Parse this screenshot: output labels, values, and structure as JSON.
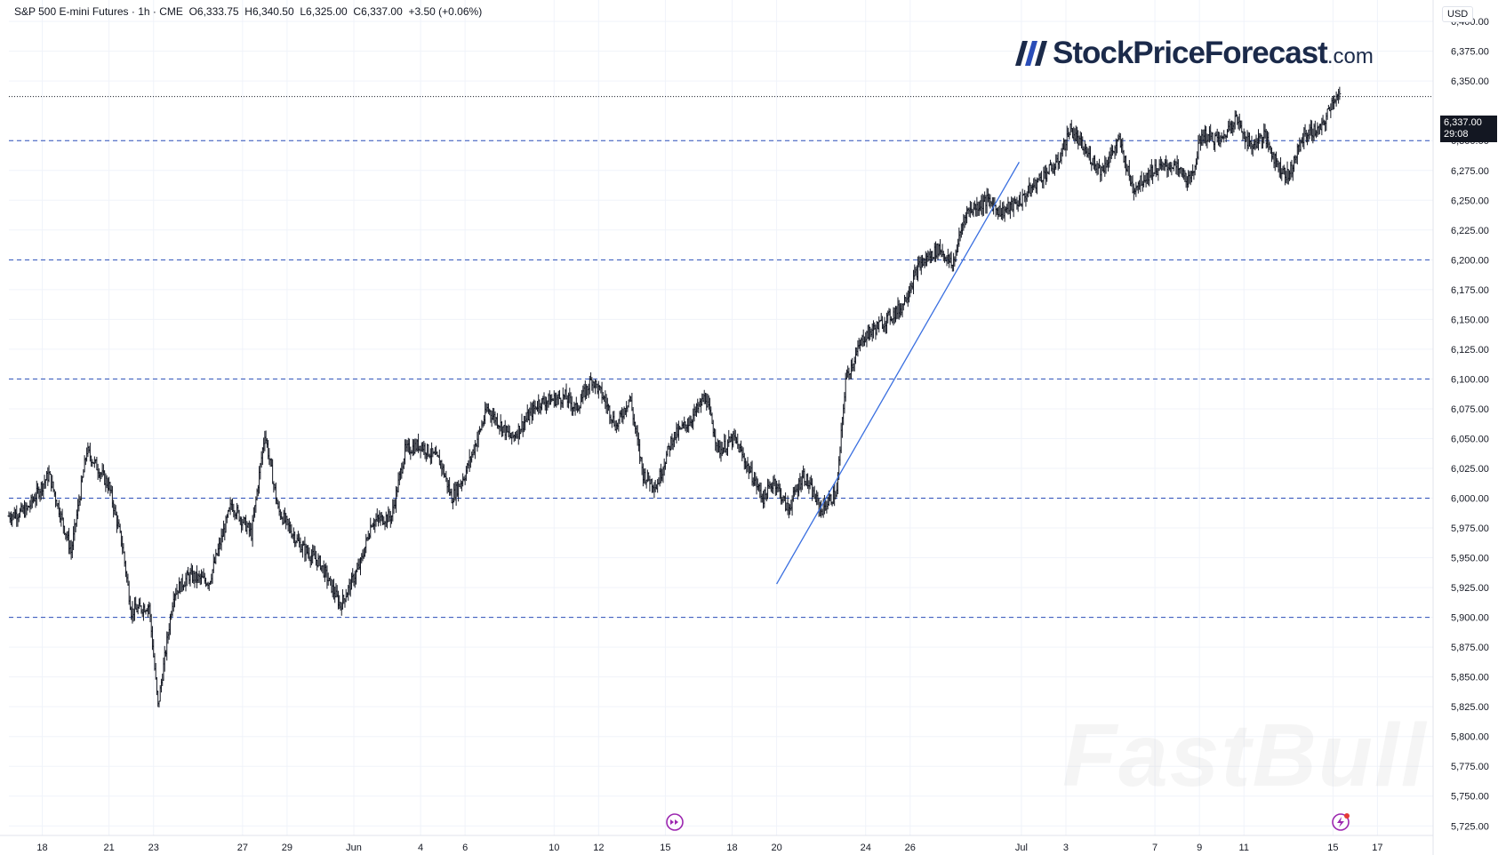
{
  "header": {
    "symbol": "S&P 500 E-mini Futures",
    "interval": "1h",
    "exchange": "CME",
    "open": "O6,333.75",
    "high": "H6,340.50",
    "low": "L6,325.00",
    "close": "C6,337.00",
    "change": "+3.50 (+0.06%)"
  },
  "currency": "USD",
  "logo": {
    "name": "StockPriceForecast",
    "domain": ".com"
  },
  "watermark": "FastBull",
  "price_label": {
    "price": "6,337.00",
    "countdown": "29:08"
  },
  "colors": {
    "candle": "#131722",
    "dashed": "#2a4db8",
    "trend": "#3a6fe0",
    "icon": "#9c27b0",
    "logo": "#1b2a4a"
  },
  "icons": {
    "event_icon": "fast-forward-circle-icon",
    "alert_icon": "lightning-circle-icon"
  },
  "chart_data": {
    "type": "candlestick",
    "title": "S&P 500 E-mini Futures · 1h · CME",
    "ylim": [
      5717,
      6418
    ],
    "yticks": [
      {
        "value": 6400,
        "label": "6,400.00"
      },
      {
        "value": 6375,
        "label": "6,375.00"
      },
      {
        "value": 6350,
        "label": "6,350.00"
      },
      {
        "value": 6300,
        "label": "6,300.00"
      },
      {
        "value": 6275,
        "label": "6,275.00"
      },
      {
        "value": 6250,
        "label": "6,250.00"
      },
      {
        "value": 6225,
        "label": "6,225.00"
      },
      {
        "value": 6200,
        "label": "6,200.00"
      },
      {
        "value": 6175,
        "label": "6,175.00"
      },
      {
        "value": 6150,
        "label": "6,150.00"
      },
      {
        "value": 6125,
        "label": "6,125.00"
      },
      {
        "value": 6100,
        "label": "6,100.00"
      },
      {
        "value": 6075,
        "label": "6,075.00"
      },
      {
        "value": 6050,
        "label": "6,050.00"
      },
      {
        "value": 6025,
        "label": "6,025.00"
      },
      {
        "value": 6000,
        "label": "6,000.00"
      },
      {
        "value": 5975,
        "label": "5,975.00"
      },
      {
        "value": 5950,
        "label": "5,950.00"
      },
      {
        "value": 5925,
        "label": "5,925.00"
      },
      {
        "value": 5900,
        "label": "5,900.00"
      },
      {
        "value": 5875,
        "label": "5,875.00"
      },
      {
        "value": 5850,
        "label": "5,850.00"
      },
      {
        "value": 5825,
        "label": "5,825.00"
      },
      {
        "value": 5800,
        "label": "5,800.00"
      },
      {
        "value": 5775,
        "label": "5,775.00"
      },
      {
        "value": 5750,
        "label": "5,750.00"
      },
      {
        "value": 5725,
        "label": "5,725.00"
      }
    ],
    "xticks": [
      "18",
      "21",
      "23",
      "27",
      "29",
      "Jun",
      "4",
      "6",
      "10",
      "12",
      "15",
      "18",
      "20",
      "24",
      "26",
      "Jul",
      "3",
      "7",
      "9",
      "11",
      "15",
      "17"
    ],
    "xtick_day": [
      0,
      3,
      5,
      9,
      11,
      14,
      17,
      19,
      23,
      25,
      28,
      31,
      33,
      37,
      39,
      44,
      46,
      50,
      52,
      54,
      58,
      60
    ],
    "day_range": [
      -1.5,
      62.5
    ],
    "horizontal_levels": [
      6300,
      6200,
      6100,
      6000,
      5900
    ],
    "last_price": 6337,
    "trendline": {
      "from": {
        "day": 33.0,
        "price": 5928
      },
      "to": {
        "day": 43.9,
        "price": 6282
      }
    },
    "price_path": [
      [
        -1.5,
        5985
      ],
      [
        -0.7,
        5990
      ],
      [
        0.3,
        6020
      ],
      [
        1.3,
        5955
      ],
      [
        2.0,
        6040
      ],
      [
        3.0,
        6010
      ],
      [
        3.6,
        5960
      ],
      [
        4.0,
        5905
      ],
      [
        4.8,
        5910
      ],
      [
        5.2,
        5825
      ],
      [
        5.9,
        5920
      ],
      [
        6.6,
        5935
      ],
      [
        7.5,
        5930
      ],
      [
        8.5,
        5995
      ],
      [
        9.4,
        5970
      ],
      [
        10.0,
        6055
      ],
      [
        10.6,
        5990
      ],
      [
        11.6,
        5960
      ],
      [
        12.5,
        5945
      ],
      [
        13.4,
        5910
      ],
      [
        14.3,
        5945
      ],
      [
        14.8,
        5980
      ],
      [
        15.7,
        5985
      ],
      [
        16.3,
        6040
      ],
      [
        17.0,
        6045
      ],
      [
        17.9,
        6030
      ],
      [
        18.4,
        6000
      ],
      [
        19.0,
        6020
      ],
      [
        20.0,
        6075
      ],
      [
        21.1,
        6050
      ],
      [
        22.3,
        6080
      ],
      [
        23.5,
        6085
      ],
      [
        24.0,
        6075
      ],
      [
        24.7,
        6100
      ],
      [
        25.2,
        6085
      ],
      [
        25.8,
        6060
      ],
      [
        26.4,
        6085
      ],
      [
        27.0,
        6020
      ],
      [
        27.6,
        6010
      ],
      [
        28.3,
        6050
      ],
      [
        29.1,
        6065
      ],
      [
        29.8,
        6085
      ],
      [
        30.4,
        6040
      ],
      [
        31.1,
        6050
      ],
      [
        31.6,
        6030
      ],
      [
        32.4,
        6000
      ],
      [
        32.9,
        6015
      ],
      [
        33.5,
        5990
      ],
      [
        34.2,
        6020
      ],
      [
        35.0,
        5990
      ],
      [
        35.7,
        6005
      ],
      [
        36.1,
        6100
      ],
      [
        36.9,
        6135
      ],
      [
        37.6,
        6145
      ],
      [
        38.6,
        6160
      ],
      [
        39.4,
        6195
      ],
      [
        40.3,
        6210
      ],
      [
        40.9,
        6195
      ],
      [
        41.5,
        6240
      ],
      [
        42.5,
        6250
      ],
      [
        43.1,
        6240
      ],
      [
        44.0,
        6250
      ],
      [
        44.9,
        6270
      ],
      [
        45.6,
        6280
      ],
      [
        46.2,
        6310
      ],
      [
        46.9,
        6290
      ],
      [
        47.6,
        6275
      ],
      [
        48.4,
        6300
      ],
      [
        49.0,
        6260
      ],
      [
        49.9,
        6275
      ],
      [
        50.8,
        6280
      ],
      [
        51.6,
        6265
      ],
      [
        52.1,
        6305
      ],
      [
        53.0,
        6300
      ],
      [
        53.6,
        6320
      ],
      [
        54.3,
        6295
      ],
      [
        54.9,
        6305
      ],
      [
        55.5,
        6280
      ],
      [
        56.0,
        6270
      ],
      [
        56.7,
        6305
      ],
      [
        57.5,
        6310
      ],
      [
        58.0,
        6335
      ],
      [
        58.3,
        6337
      ]
    ]
  }
}
